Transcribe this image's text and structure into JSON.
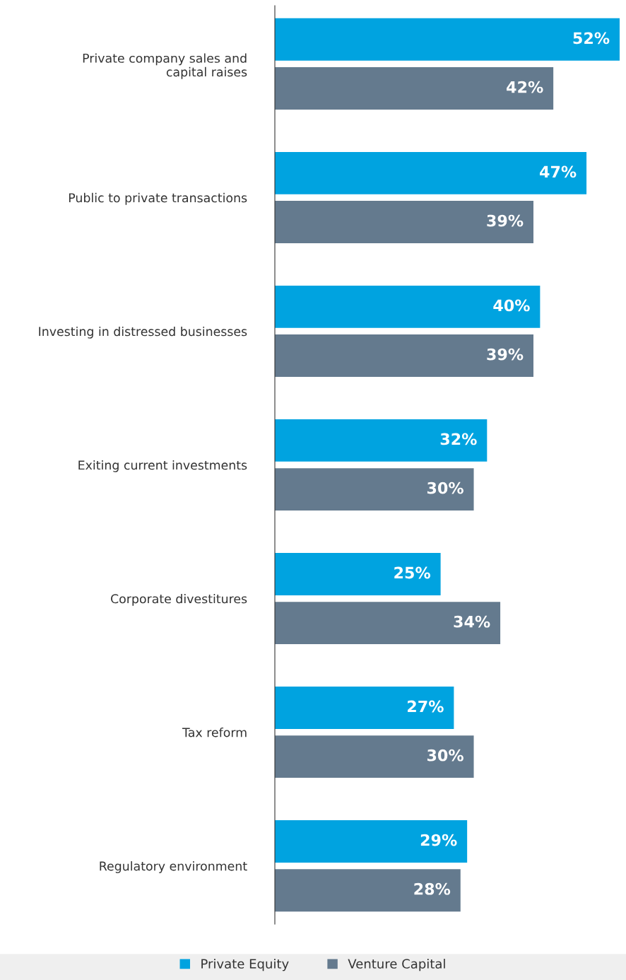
{
  "chart_data": {
    "type": "bar",
    "orientation": "horizontal",
    "categories": [
      "Private company sales and\ncapital raises",
      "Public to private transactions",
      "Investing in distressed businesses",
      "Exiting current investments",
      "Corporate divestitures",
      "Tax reform",
      "Regulatory environment"
    ],
    "series": [
      {
        "name": "Private Equity",
        "color": "#00a3e0",
        "values": [
          52,
          47,
          40,
          32,
          25,
          27,
          29
        ],
        "value_labels": [
          "52%",
          "47%",
          "40%",
          "32%",
          "25%",
          "27%",
          "29%"
        ]
      },
      {
        "name": "Venture Capital",
        "color": "#647a8e",
        "values": [
          42,
          39,
          39,
          30,
          34,
          30,
          28
        ],
        "value_labels": [
          "42%",
          "39%",
          "39%",
          "30%",
          "34%",
          "30%",
          "28%"
        ]
      }
    ],
    "xlim": [
      0,
      52
    ],
    "tick_labels": "y",
    "grid": false,
    "legend": "bottom"
  }
}
